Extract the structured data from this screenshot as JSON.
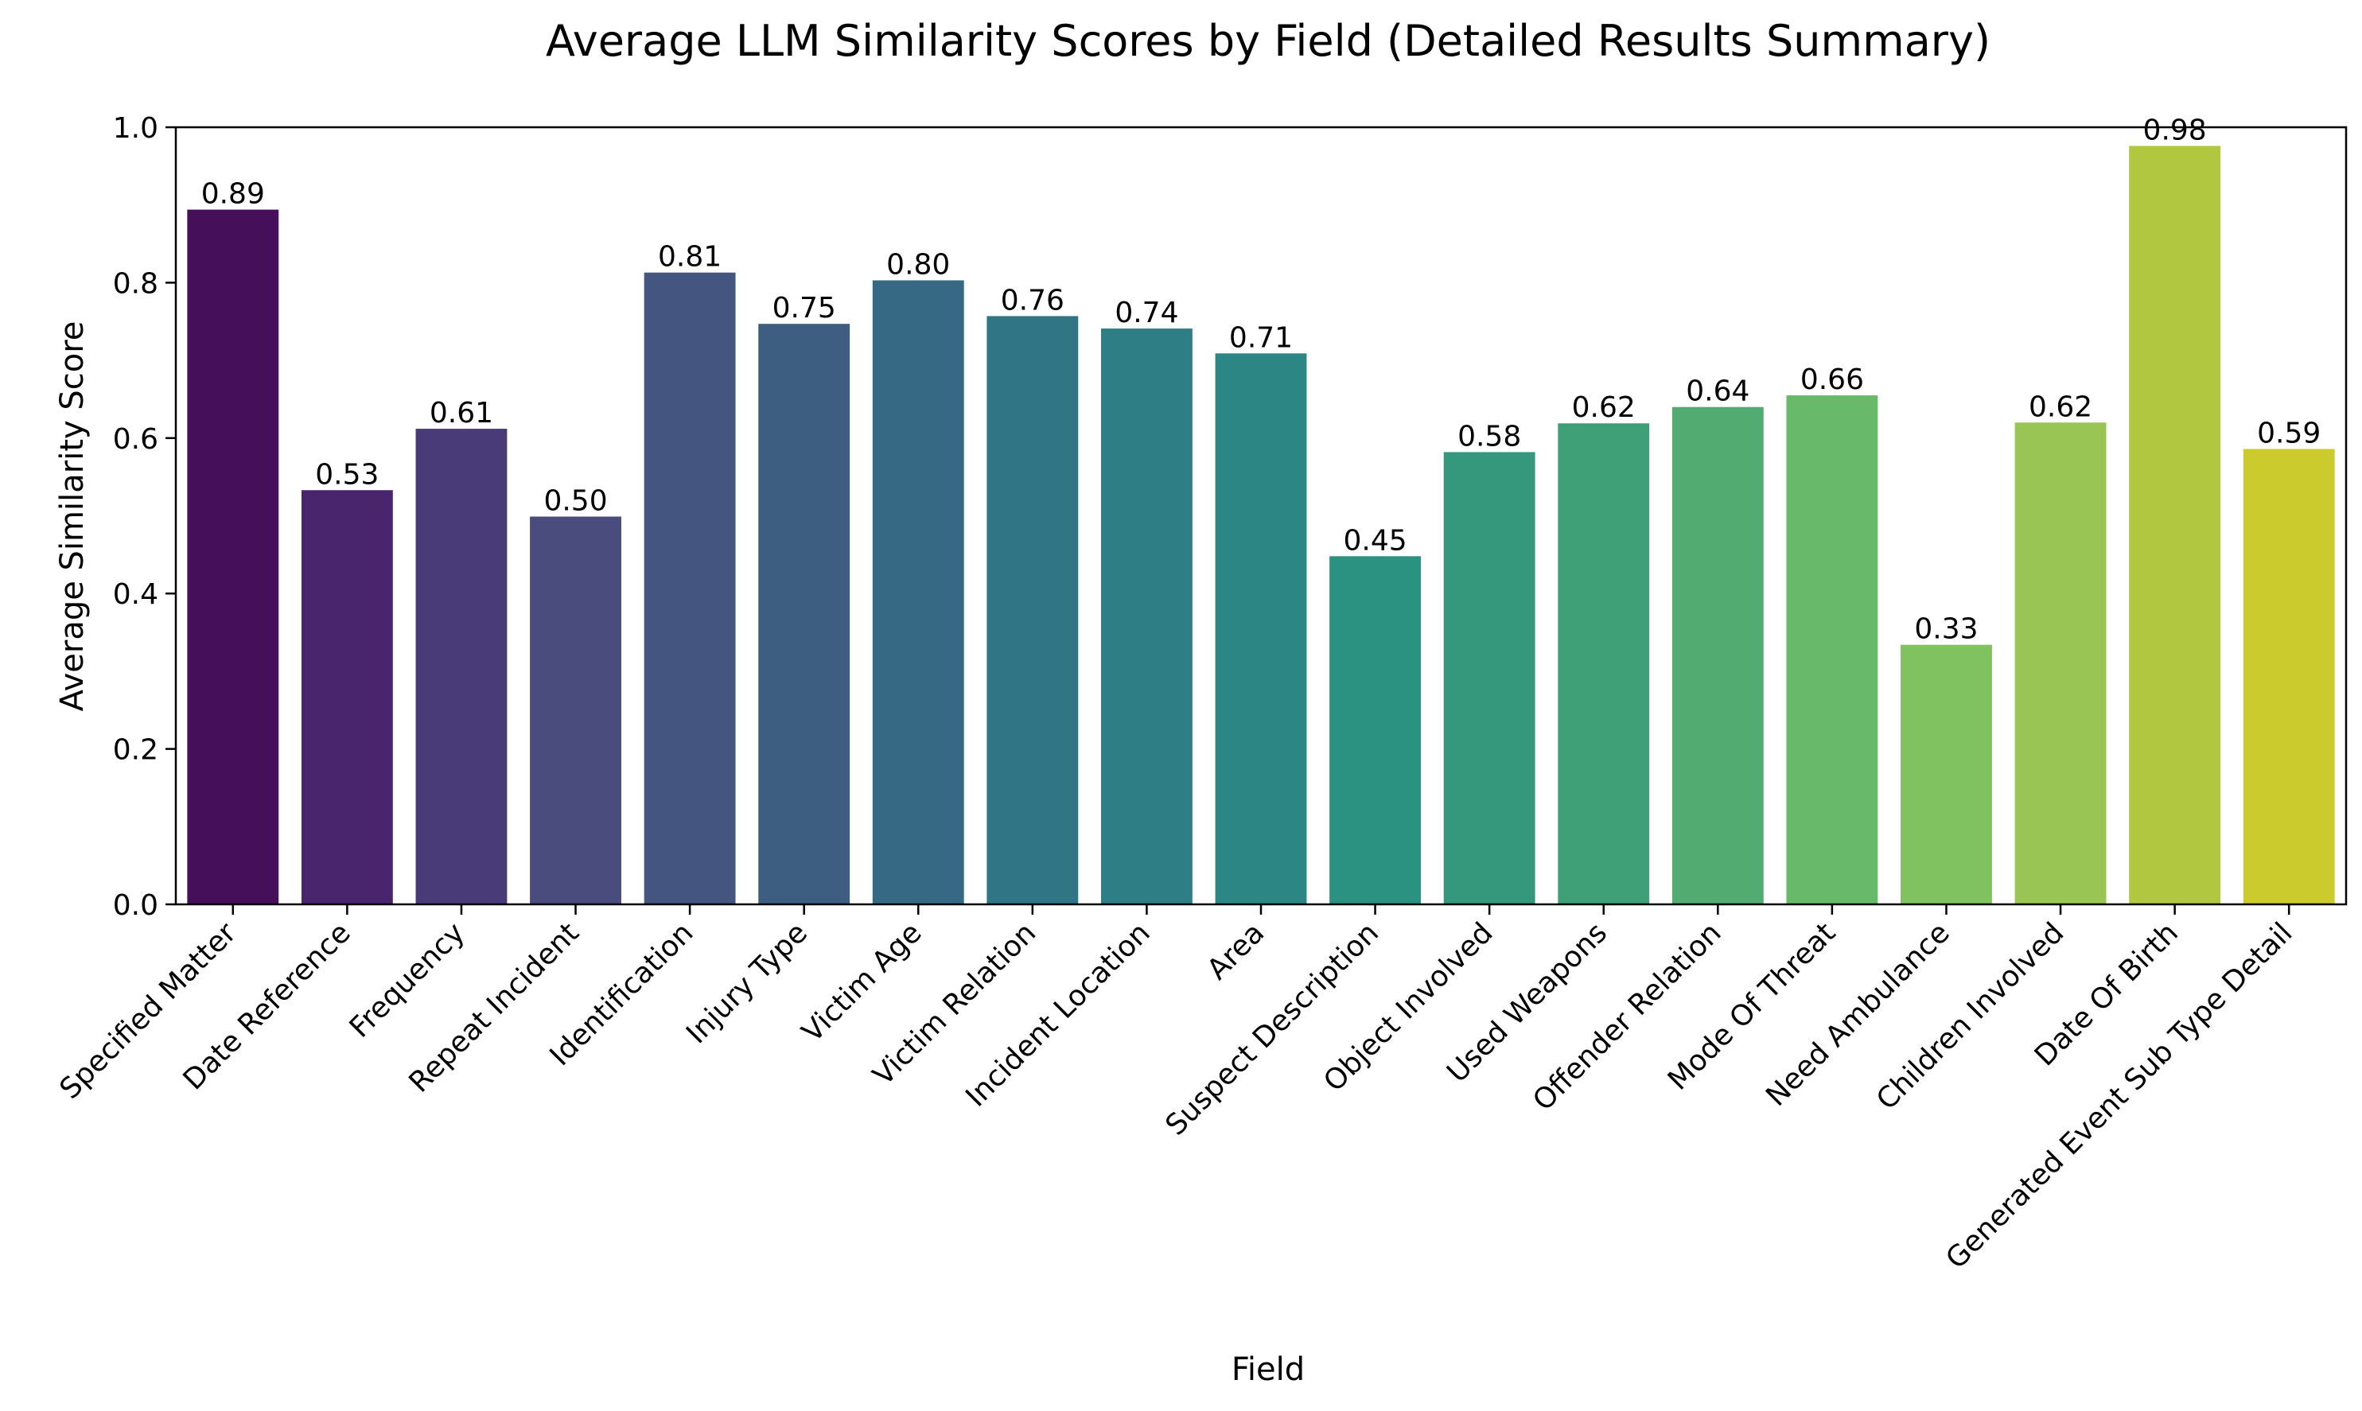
{
  "chart_data": {
    "type": "bar",
    "title": "Average LLM Similarity Scores by Field (Detailed Results Summary)",
    "xlabel": "Field",
    "ylabel": "Average Similarity Score",
    "ylim": [
      0,
      1.0
    ],
    "yticks": [
      "0.0",
      "0.2",
      "0.4",
      "0.6",
      "0.8",
      "1.0"
    ],
    "grid": false,
    "legend": "none",
    "palette": "viridis",
    "categories": [
      "Specified Matter",
      "Date Reference",
      "Frequency",
      "Repeat Incident",
      "Identification",
      "Injury Type",
      "Victim Age",
      "Victim Relation",
      "Incident Location",
      "Area",
      "Suspect Description",
      "Object Involved",
      "Used Weapons",
      "Offender Relation",
      "Mode Of Threat",
      "Need Ambulance",
      "Children Involved",
      "Date Of Birth",
      "Generated Event Sub Type Detail"
    ],
    "values": [
      0.894,
      0.533,
      0.612,
      0.499,
      0.813,
      0.747,
      0.803,
      0.757,
      0.741,
      0.709,
      0.448,
      0.582,
      0.619,
      0.64,
      0.655,
      0.334,
      0.62,
      0.976,
      0.586
    ],
    "data_labels": [
      "0.89",
      "0.53",
      "0.61",
      "0.50",
      "0.81",
      "0.75",
      "0.80",
      "0.76",
      "0.74",
      "0.71",
      "0.45",
      "0.58",
      "0.62",
      "0.64",
      "0.66",
      "0.33",
      "0.62",
      "0.98",
      "0.59"
    ],
    "colors": [
      "#450f59",
      "#48256d",
      "#493b77",
      "#4a4c7d",
      "#44567f",
      "#3e5e81",
      "#366a84",
      "#307585",
      "#2d7f85",
      "#2c8683",
      "#2b9180",
      "#35987c",
      "#3fa077",
      "#52ab70",
      "#69b96a",
      "#80c160",
      "#98c554",
      "#b0c73f",
      "#cccb2e"
    ]
  }
}
